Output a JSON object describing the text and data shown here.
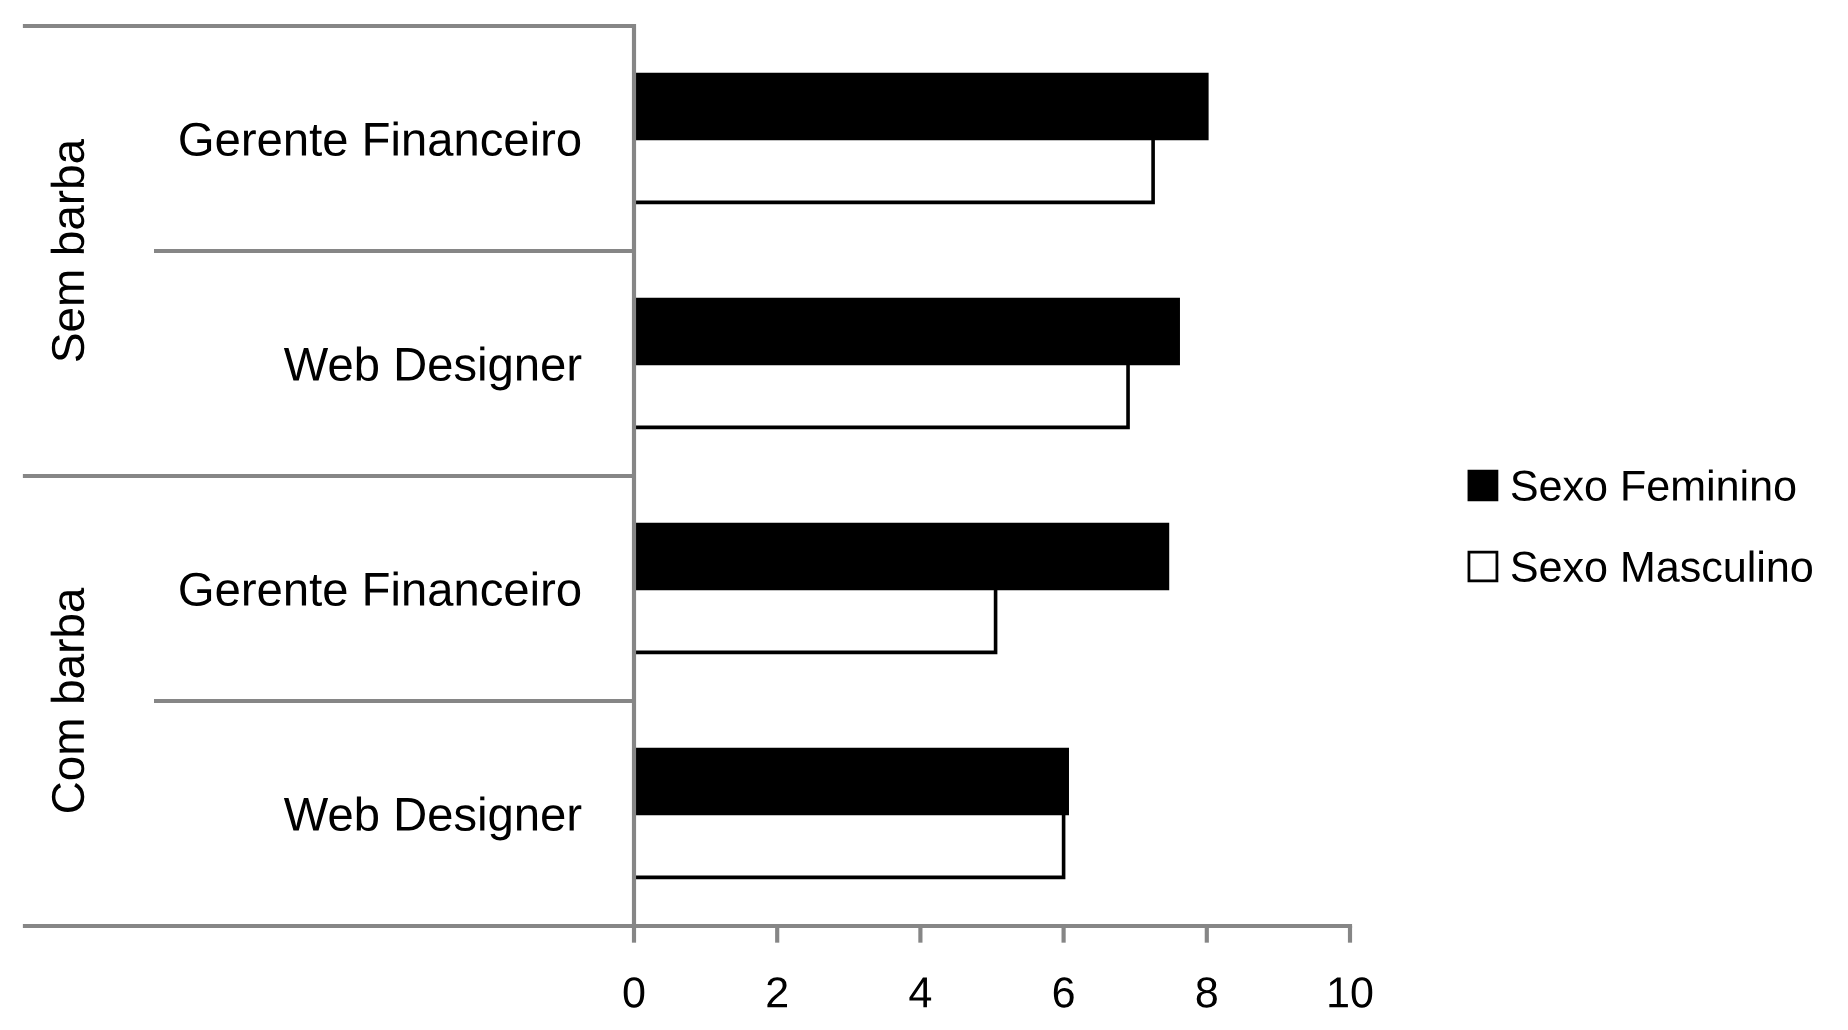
{
  "chart_data": {
    "type": "bar",
    "orientation": "horizontal",
    "categories": [
      "Gerente Financeiro",
      "Web Designer",
      "Gerente Financeiro",
      "Web Designer"
    ],
    "series": [
      {
        "name": "Sexo Feminino",
        "color": "#000000",
        "values": [
          8.0,
          7.6,
          7.45,
          6.05
        ]
      },
      {
        "name": "Sexo Masculino",
        "color": "#ffffff",
        "values": [
          7.25,
          6.9,
          5.05,
          6.0
        ]
      }
    ],
    "xlim": [
      0,
      10
    ],
    "xticks": [
      0,
      2,
      4,
      6,
      8,
      10
    ],
    "annotations": [
      "Sem barba",
      "Com barba"
    ],
    "legend": "right"
  }
}
